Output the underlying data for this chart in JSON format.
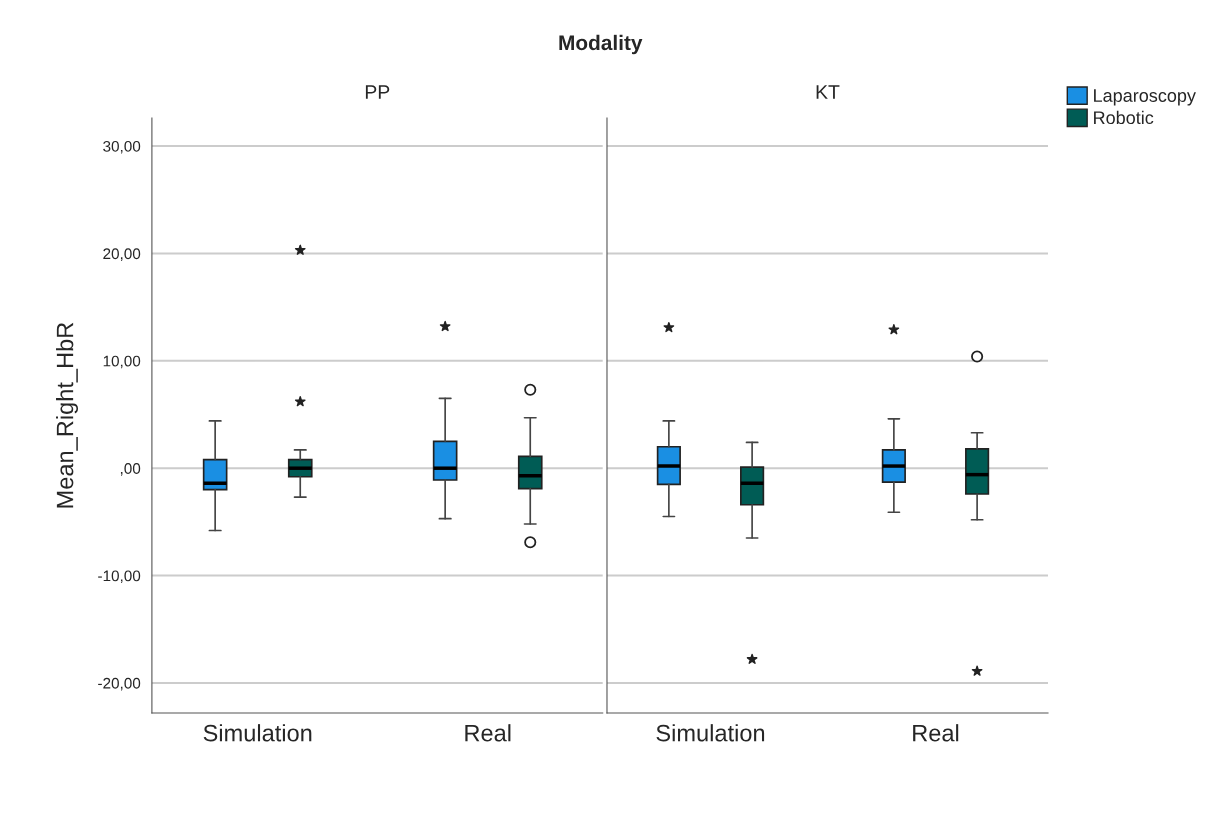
{
  "chart_data": [
    {
      "type": "box",
      "title": "Modality",
      "subtitle": "PP",
      "ylabel": "Mean_Right_HbR",
      "categories": [
        "Simulation",
        "Real"
      ],
      "ylim": [
        -22.8,
        32.6
      ],
      "yticks": [
        {
          "value": -20,
          "label": "-20,00"
        },
        {
          "value": -10,
          "label": "-10,00"
        },
        {
          "value": 0,
          "label": ",00"
        },
        {
          "value": 10,
          "label": "10,00"
        },
        {
          "value": 20,
          "label": "20,00"
        },
        {
          "value": 30,
          "label": "30,00"
        }
      ],
      "grid": "y",
      "legend": "top right",
      "series": [
        {
          "name": "Laparoscopy",
          "color": "#1a8fe3",
          "boxes": [
            {
              "low": -5.8,
              "q1": -2.0,
              "median": -1.4,
              "q3": 0.8,
              "high": 4.4
            },
            {
              "low": -4.7,
              "q1": -1.1,
              "median": 0.0,
              "q3": 2.5,
              "high": 6.5,
              "outliers": [
                13.2
              ]
            }
          ]
        },
        {
          "name": "Robotic",
          "color": "#005c55",
          "boxes": [
            {
              "low": -2.7,
              "q1": -0.8,
              "median": 0.0,
              "q3": 0.8,
              "high": 1.7,
              "outliers": [
                20.3,
                6.2
              ]
            },
            {
              "low": -5.2,
              "q1": -1.9,
              "median": -0.7,
              "q3": 1.1,
              "high": 4.7,
              "outliers": [
                7.3,
                -6.9
              ]
            }
          ]
        }
      ]
    },
    {
      "type": "box",
      "subtitle": "KT",
      "categories": [
        "Simulation",
        "Real"
      ],
      "ylim": [
        -22.8,
        32.6
      ],
      "yticks": [
        {
          "value": -20,
          "label": null
        },
        {
          "value": -10,
          "label": null
        },
        {
          "value": 0,
          "label": null
        },
        {
          "value": 10,
          "label": null
        },
        {
          "value": 20,
          "label": null
        },
        {
          "value": 30,
          "label": null
        }
      ],
      "tick_labels": "x",
      "grid": "y",
      "series": [
        {
          "color": "#1a8fe3",
          "boxes": [
            {
              "low": -4.5,
              "q1": -1.5,
              "median": 0.2,
              "q3": 2.0,
              "high": 4.4,
              "outliers": [
                13.1
              ]
            },
            {
              "low": -4.1,
              "q1": -1.3,
              "median": 0.2,
              "q3": 1.7,
              "high": 4.6,
              "outliers": [
                12.9
              ]
            }
          ]
        },
        {
          "color": "#005c55",
          "boxes": [
            {
              "low": -6.5,
              "q1": -3.4,
              "median": -1.4,
              "q3": 0.1,
              "high": 2.4,
              "outliers": [
                -17.8
              ]
            },
            {
              "low": -4.8,
              "q1": -2.4,
              "median": -0.6,
              "q3": 1.8,
              "high": 3.3,
              "outliers": [
                10.4,
                -18.9
              ]
            }
          ]
        }
      ]
    }
  ]
}
